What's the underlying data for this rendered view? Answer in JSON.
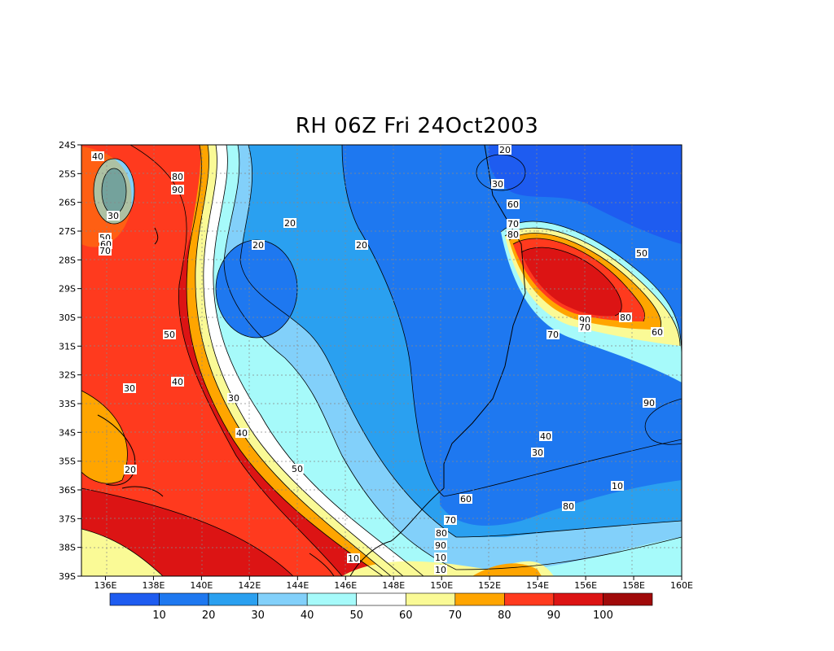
{
  "title": "RH 06Z Fri 24Oct2003",
  "map": {
    "lat_ticks": [
      "24S",
      "25S",
      "26S",
      "27S",
      "28S",
      "29S",
      "30S",
      "31S",
      "32S",
      "33S",
      "34S",
      "35S",
      "36S",
      "37S",
      "38S",
      "39S"
    ],
    "lon_ticks": [
      "136E",
      "138E",
      "140E",
      "142E",
      "144E",
      "146E",
      "148E",
      "150E",
      "152E",
      "154E",
      "156E",
      "158E",
      "160E"
    ],
    "contour_labels": [
      "40",
      "30",
      "50",
      "60",
      "70",
      "80",
      "90",
      "20",
      "20",
      "20",
      "20",
      "30",
      "30",
      "40",
      "50",
      "60",
      "70",
      "80",
      "90",
      "10",
      "10",
      "10",
      "20",
      "30",
      "40",
      "50",
      "60",
      "70",
      "80",
      "90",
      "70",
      "80",
      "90",
      "10",
      "80",
      "30",
      "40",
      "50",
      "60",
      "70"
    ]
  },
  "colorbar": {
    "labels": [
      "10",
      "20",
      "30",
      "40",
      "50",
      "60",
      "70",
      "80",
      "90",
      "100"
    ],
    "colors": [
      "#1e5cf0",
      "#1e78f0",
      "#2aa0f0",
      "#82d0fa",
      "#a6fafa",
      "#ffffff",
      "#fafa96",
      "#ffa500",
      "#ff3a1e",
      "#dc1414",
      "#a00a0a"
    ]
  }
}
